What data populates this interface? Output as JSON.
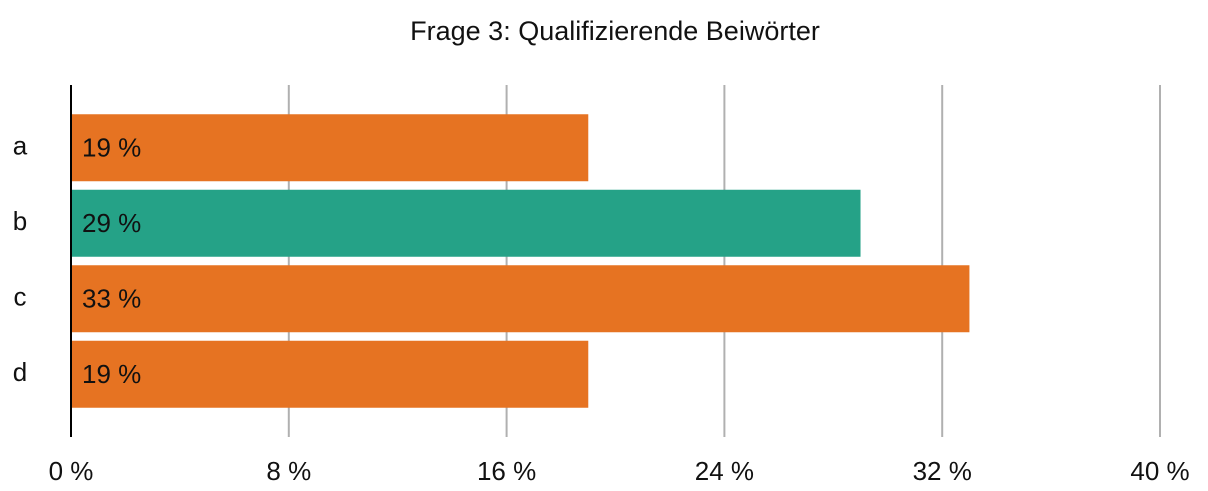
{
  "chart_data": {
    "type": "barh",
    "title": "Frage 3: Qualifizierende Beiwörter",
    "categories": [
      "a",
      "b",
      "c",
      "d"
    ],
    "values": [
      19,
      29,
      33,
      19
    ],
    "value_labels": [
      "19 %",
      "29 %",
      "33 %",
      "19 %"
    ],
    "colors": [
      "#e67322",
      "#25a287",
      "#e67322",
      "#e67322"
    ],
    "xlim": [
      0,
      40
    ],
    "xticks": [
      {
        "value": 0,
        "label": "0 %"
      },
      {
        "value": 8,
        "label": "8 %"
      },
      {
        "value": 16,
        "label": "16 %"
      },
      {
        "value": 24,
        "label": "24 %"
      },
      {
        "value": 32,
        "label": "32 %"
      },
      {
        "value": 40,
        "label": "40 %"
      }
    ],
    "grid": true
  }
}
